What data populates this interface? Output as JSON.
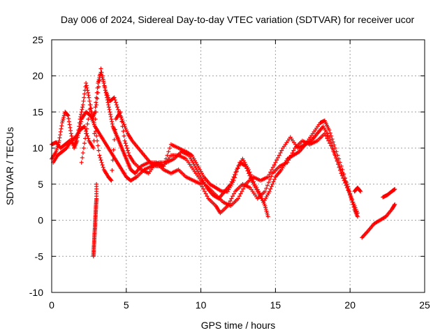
{
  "chart_data": {
    "type": "scatter",
    "title": "Day 006 of 2024, Sidereal Day-to-day VTEC variation (SDTVAR) for receiver ucor",
    "xlabel": "GPS time / hours",
    "ylabel": "SDTVAR / TECUs",
    "xlim": [
      0,
      25
    ],
    "ylim": [
      -10,
      25
    ],
    "x_ticks": [
      0,
      5,
      10,
      15,
      20,
      25
    ],
    "y_ticks": [
      -10,
      -5,
      0,
      5,
      10,
      15,
      20,
      25
    ],
    "x_tick_labels": [
      "0",
      "5",
      "10",
      "15",
      "20",
      "25"
    ],
    "y_tick_labels": [
      "-10",
      "-5",
      "0",
      "5",
      "10",
      "15",
      "20",
      "25"
    ],
    "grid": true,
    "marker": "+",
    "series_color": "#ff0000",
    "series": [
      {
        "name": "trace-1",
        "points": [
          [
            0.0,
            8.5
          ],
          [
            0.3,
            9.5
          ],
          [
            0.5,
            11
          ],
          [
            0.7,
            13.5
          ],
          [
            0.9,
            15
          ],
          [
            1.1,
            14.5
          ],
          [
            1.3,
            12
          ],
          [
            1.5,
            10
          ],
          [
            1.7,
            11
          ],
          [
            1.9,
            14
          ],
          [
            2.1,
            16
          ],
          [
            2.3,
            19
          ],
          [
            2.5,
            17
          ],
          [
            2.7,
            14
          ],
          [
            2.9,
            15
          ],
          [
            3.1,
            19
          ],
          [
            3.3,
            20.5
          ],
          [
            3.5,
            19
          ],
          [
            3.7,
            17
          ],
          [
            3.9,
            15
          ],
          [
            4.1,
            13
          ],
          [
            4.3,
            12
          ],
          [
            4.5,
            11
          ],
          [
            4.7,
            10
          ],
          [
            4.9,
            9
          ],
          [
            5.1,
            8
          ],
          [
            5.3,
            7
          ],
          [
            5.6,
            6.5
          ],
          [
            6.0,
            7.5
          ],
          [
            6.5,
            8
          ],
          [
            7.0,
            8
          ],
          [
            7.5,
            7.5
          ],
          [
            8.0,
            9
          ],
          [
            8.5,
            9
          ],
          [
            9.0,
            8.5
          ],
          [
            9.5,
            7
          ],
          [
            10.0,
            5.5
          ],
          [
            10.5,
            4.5
          ],
          [
            11.0,
            3.5
          ],
          [
            11.5,
            2.5
          ],
          [
            12.0,
            2
          ],
          [
            12.5,
            3
          ],
          [
            13.0,
            5
          ],
          [
            13.5,
            6
          ],
          [
            14.0,
            5.5
          ],
          [
            14.5,
            6
          ],
          [
            15.0,
            8
          ],
          [
            15.5,
            10
          ],
          [
            16.0,
            11.5
          ],
          [
            16.5,
            10
          ],
          [
            17.0,
            10.5
          ],
          [
            17.5,
            12
          ],
          [
            18.0,
            13.5
          ],
          [
            18.3,
            13.8
          ],
          [
            18.6,
            12.5
          ],
          [
            19.0,
            10
          ],
          [
            19.5,
            7
          ],
          [
            20.0,
            3.5
          ],
          [
            20.3,
            1.5
          ],
          [
            20.5,
            0.5
          ]
        ]
      },
      {
        "name": "trace-2",
        "points": [
          [
            0.0,
            10.5
          ],
          [
            0.3,
            10.8
          ],
          [
            0.6,
            10
          ],
          [
            0.9,
            10.5
          ],
          [
            1.2,
            11
          ],
          [
            1.5,
            10.5
          ],
          [
            1.8,
            12
          ],
          [
            2.0,
            14
          ],
          [
            2.3,
            15
          ],
          [
            2.6,
            14.5
          ],
          [
            2.9,
            13
          ],
          [
            3.2,
            12
          ],
          [
            3.5,
            11
          ],
          [
            3.8,
            10
          ],
          [
            4.1,
            9
          ],
          [
            4.4,
            8
          ],
          [
            4.7,
            7
          ],
          [
            5.0,
            6
          ],
          [
            5.3,
            5.5
          ],
          [
            5.7,
            6
          ],
          [
            6.2,
            7
          ],
          [
            6.7,
            7.5
          ],
          [
            7.2,
            8
          ],
          [
            7.7,
            8
          ],
          [
            8.2,
            8.5
          ],
          [
            8.7,
            9.5
          ],
          [
            9.2,
            9
          ],
          [
            9.6,
            7.5
          ],
          [
            10.0,
            6
          ],
          [
            10.4,
            4.5
          ],
          [
            10.8,
            3.5
          ],
          [
            11.2,
            3
          ],
          [
            11.6,
            4
          ],
          [
            12.0,
            5
          ],
          [
            12.4,
            7
          ],
          [
            12.8,
            8.5
          ],
          [
            13.2,
            7
          ],
          [
            13.6,
            5
          ],
          [
            14.0,
            3.5
          ],
          [
            14.3,
            2
          ],
          [
            14.5,
            0.5
          ]
        ]
      },
      {
        "name": "trace-3",
        "points": [
          [
            2.0,
            8
          ],
          [
            2.3,
            12
          ],
          [
            2.6,
            16
          ],
          [
            2.9,
            13
          ],
          [
            3.2,
            9
          ],
          [
            3.5,
            7
          ],
          [
            3.8,
            6
          ],
          [
            4.0,
            5.5
          ],
          [
            4.3,
            14
          ],
          [
            4.6,
            15
          ],
          [
            4.9,
            11
          ],
          [
            5.2,
            9
          ],
          [
            5.5,
            8
          ],
          [
            6.0,
            7
          ],
          [
            6.5,
            6.5
          ],
          [
            7.0,
            8
          ],
          [
            7.5,
            7
          ],
          [
            8.0,
            6.5
          ],
          [
            8.5,
            7
          ],
          [
            9.0,
            6
          ],
          [
            9.5,
            5.5
          ],
          [
            10.0,
            5
          ],
          [
            10.5,
            3
          ],
          [
            11.0,
            2
          ],
          [
            11.3,
            1
          ],
          [
            11.8,
            2
          ],
          [
            12.3,
            4
          ],
          [
            12.8,
            5
          ],
          [
            13.3,
            4.5
          ],
          [
            13.8,
            3
          ],
          [
            14.3,
            4
          ],
          [
            14.8,
            6.5
          ],
          [
            15.3,
            7.5
          ],
          [
            15.8,
            8
          ],
          [
            16.3,
            10
          ],
          [
            16.8,
            11
          ],
          [
            17.3,
            10.5
          ],
          [
            17.8,
            11
          ],
          [
            18.3,
            12
          ],
          [
            18.8,
            10
          ],
          [
            19.3,
            7.5
          ],
          [
            19.8,
            5
          ],
          [
            20.1,
            3
          ]
        ]
      },
      {
        "name": "trace-4",
        "points": [
          [
            0.1,
            8
          ],
          [
            0.4,
            9
          ],
          [
            0.7,
            9.5
          ],
          [
            1.0,
            10
          ],
          [
            1.3,
            11
          ],
          [
            1.6,
            11.5
          ],
          [
            1.9,
            12.5
          ],
          [
            2.2,
            13
          ],
          [
            2.5,
            11
          ],
          [
            2.8,
            10
          ],
          [
            3.0,
            16
          ],
          [
            3.3,
            21
          ],
          [
            3.6,
            18
          ],
          [
            3.9,
            16.5
          ],
          [
            4.2,
            17
          ],
          [
            4.5,
            15
          ],
          [
            4.8,
            13.5
          ],
          [
            5.1,
            12
          ],
          [
            5.4,
            11
          ],
          [
            5.8,
            10
          ],
          [
            6.2,
            9
          ],
          [
            6.6,
            8
          ],
          [
            7.0,
            7.5
          ],
          [
            7.5,
            7.5
          ],
          [
            8.0,
            10.5
          ],
          [
            8.5,
            10
          ],
          [
            9.0,
            9.5
          ],
          [
            9.4,
            9
          ],
          [
            9.8,
            7.5
          ],
          [
            10.2,
            6
          ],
          [
            10.6,
            5
          ],
          [
            11.0,
            4.5
          ],
          [
            11.4,
            4
          ],
          [
            11.8,
            4
          ],
          [
            12.2,
            5.5
          ],
          [
            12.6,
            8
          ],
          [
            13.0,
            7.5
          ],
          [
            13.4,
            5.5
          ],
          [
            13.8,
            4
          ],
          [
            14.2,
            2.5
          ],
          [
            14.6,
            4
          ],
          [
            15.0,
            6
          ],
          [
            15.4,
            7
          ],
          [
            15.8,
            8.5
          ],
          [
            16.2,
            9
          ],
          [
            16.6,
            9.5
          ],
          [
            17.0,
            10.5
          ],
          [
            17.4,
            11
          ],
          [
            17.8,
            12
          ],
          [
            18.2,
            13
          ],
          [
            18.6,
            11.5
          ],
          [
            19.0,
            9
          ],
          [
            19.4,
            6.5
          ],
          [
            19.8,
            4.5
          ],
          [
            20.2,
            2.5
          ],
          [
            20.5,
            1
          ]
        ]
      },
      {
        "name": "trace-5",
        "points": [
          [
            20.3,
            4
          ],
          [
            20.5,
            4.5
          ],
          [
            20.7,
            4
          ]
        ]
      },
      {
        "name": "trace-6",
        "points": [
          [
            20.8,
            -2.4
          ],
          [
            21.2,
            -1.5
          ],
          [
            21.6,
            -0.5
          ],
          [
            22.0,
            0
          ],
          [
            22.4,
            0.5
          ],
          [
            22.8,
            1.5
          ],
          [
            23.0,
            2.2
          ]
        ]
      },
      {
        "name": "trace-7",
        "points": [
          [
            22.2,
            3.2
          ],
          [
            22.5,
            3.5
          ],
          [
            22.8,
            4
          ],
          [
            23.0,
            4.3
          ]
        ]
      },
      {
        "name": "trace-8",
        "points": [
          [
            2.8,
            -5
          ],
          [
            2.82,
            -4
          ],
          [
            2.85,
            -3
          ],
          [
            2.87,
            -2
          ],
          [
            2.9,
            -1
          ],
          [
            2.92,
            0
          ],
          [
            2.95,
            1
          ],
          [
            2.97,
            2
          ],
          [
            3.0,
            3
          ],
          [
            3.0,
            5
          ]
        ]
      }
    ]
  }
}
